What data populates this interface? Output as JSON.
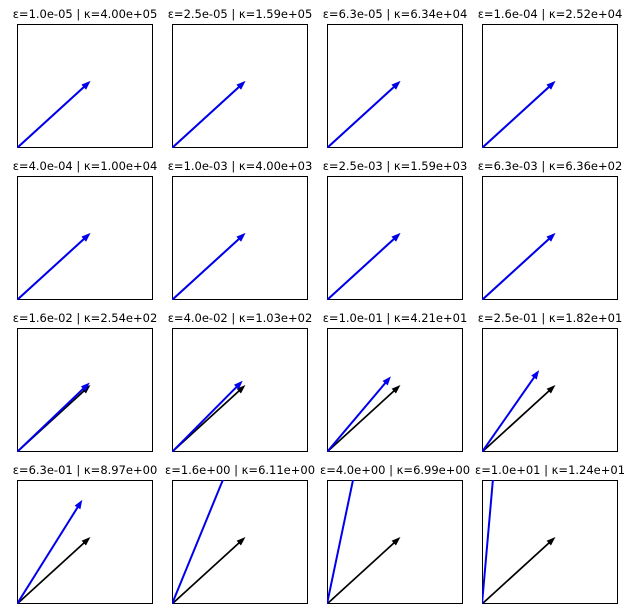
{
  "figure": {
    "background": "#ffffff"
  },
  "chart_data": {
    "type": "line",
    "subtype": "quiver_arrow_grid",
    "grid_rows": 4,
    "grid_cols": 4,
    "axes": {
      "xlim": [
        0,
        1
      ],
      "ylim": [
        0,
        1
      ],
      "ticks": "none",
      "frame": true,
      "grid": false
    },
    "colors": {
      "perturbed_arrow": "#0000EE",
      "reference_arrow": "#000000",
      "frame": "#000000"
    },
    "legend": "none",
    "subplots": [
      {
        "title": "ε=1.0e-05 | κ=4.00e+05",
        "epsilon": "1.0e-05",
        "kappa": "4.00e+05",
        "black_arrow": [
          0,
          0,
          0.54,
          0.54
        ],
        "blue_arrow": [
          0,
          0,
          0.54,
          0.54
        ],
        "blue_clipped": false
      },
      {
        "title": "ε=2.5e-05 | κ=1.59e+05",
        "epsilon": "2.5e-05",
        "kappa": "1.59e+05",
        "black_arrow": [
          0,
          0,
          0.54,
          0.54
        ],
        "blue_arrow": [
          0,
          0,
          0.54,
          0.54
        ],
        "blue_clipped": false
      },
      {
        "title": "ε=6.3e-05 | κ=6.34e+04",
        "epsilon": "6.3e-05",
        "kappa": "6.34e+04",
        "black_arrow": [
          0,
          0,
          0.54,
          0.54
        ],
        "blue_arrow": [
          0,
          0,
          0.54,
          0.54
        ],
        "blue_clipped": false
      },
      {
        "title": "ε=1.6e-04 | κ=2.52e+04",
        "epsilon": "1.6e-04",
        "kappa": "2.52e+04",
        "black_arrow": [
          0,
          0,
          0.54,
          0.54
        ],
        "blue_arrow": [
          0,
          0,
          0.54,
          0.54
        ],
        "blue_clipped": false
      },
      {
        "title": "ε=4.0e-04 | κ=1.00e+04",
        "epsilon": "4.0e-04",
        "kappa": "1.00e+04",
        "black_arrow": [
          0,
          0,
          0.54,
          0.54
        ],
        "blue_arrow": [
          0,
          0,
          0.54,
          0.54
        ],
        "blue_clipped": false
      },
      {
        "title": "ε=1.0e-03 | κ=4.00e+03",
        "epsilon": "1.0e-03",
        "kappa": "4.00e+03",
        "black_arrow": [
          0,
          0,
          0.54,
          0.54
        ],
        "blue_arrow": [
          0,
          0,
          0.54,
          0.54
        ],
        "blue_clipped": false
      },
      {
        "title": "ε=2.5e-03 | κ=1.59e+03",
        "epsilon": "2.5e-03",
        "kappa": "1.59e+03",
        "black_arrow": [
          0,
          0,
          0.54,
          0.54
        ],
        "blue_arrow": [
          0,
          0,
          0.54,
          0.54
        ],
        "blue_clipped": false
      },
      {
        "title": "ε=6.3e-03 | κ=6.36e+02",
        "epsilon": "6.3e-03",
        "kappa": "6.36e+02",
        "black_arrow": [
          0,
          0,
          0.54,
          0.54
        ],
        "blue_arrow": [
          0,
          0,
          0.54,
          0.54
        ],
        "blue_clipped": false
      },
      {
        "title": "ε=1.6e-02 | κ=2.54e+02",
        "epsilon": "1.6e-02",
        "kappa": "2.54e+02",
        "black_arrow": [
          0,
          0,
          0.54,
          0.54
        ],
        "blue_arrow": [
          0,
          0,
          0.535,
          0.56
        ],
        "blue_clipped": false
      },
      {
        "title": "ε=4.0e-02 | κ=1.03e+02",
        "epsilon": "4.0e-02",
        "kappa": "1.03e+02",
        "black_arrow": [
          0,
          0,
          0.54,
          0.54
        ],
        "blue_arrow": [
          0,
          0,
          0.52,
          0.575
        ],
        "blue_clipped": false
      },
      {
        "title": "ε=1.0e-01 | κ=4.21e+01",
        "epsilon": "1.0e-01",
        "kappa": "4.21e+01",
        "black_arrow": [
          0,
          0,
          0.54,
          0.54
        ],
        "blue_arrow": [
          0,
          0,
          0.47,
          0.61
        ],
        "blue_clipped": false
      },
      {
        "title": "ε=2.5e-01 | κ=1.82e+01",
        "epsilon": "2.5e-01",
        "kappa": "1.82e+01",
        "black_arrow": [
          0,
          0,
          0.54,
          0.54
        ],
        "blue_arrow": [
          0,
          0,
          0.42,
          0.66
        ],
        "blue_clipped": false
      },
      {
        "title": "ε=6.3e-01 | κ=8.97e+00",
        "epsilon": "6.3e-01",
        "kappa": "8.97e+00",
        "black_arrow": [
          0,
          0,
          0.54,
          0.54
        ],
        "blue_arrow": [
          0,
          0,
          0.48,
          0.84
        ],
        "blue_clipped": false
      },
      {
        "title": "ε=1.6e+00 | κ=6.11e+00",
        "epsilon": "1.6e+00",
        "kappa": "6.11e+00",
        "black_arrow": [
          0,
          0,
          0.54,
          0.54
        ],
        "blue_arrow": [
          0,
          0,
          0.43,
          1.15
        ],
        "blue_clipped": true
      },
      {
        "title": "ε=4.0e+00 | κ=6.99e+00",
        "epsilon": "4.0e+00",
        "kappa": "6.99e+00",
        "black_arrow": [
          0,
          0,
          0.54,
          0.54
        ],
        "blue_arrow": [
          0,
          0,
          0.22,
          1.15
        ],
        "blue_clipped": true
      },
      {
        "title": "ε=1.0e+01 | κ=1.24e+01",
        "epsilon": "1.0e+01",
        "kappa": "1.24e+01",
        "black_arrow": [
          0,
          0,
          0.54,
          0.54
        ],
        "blue_arrow": [
          0,
          0,
          0.092,
          1.15
        ],
        "blue_clipped": true
      }
    ]
  }
}
